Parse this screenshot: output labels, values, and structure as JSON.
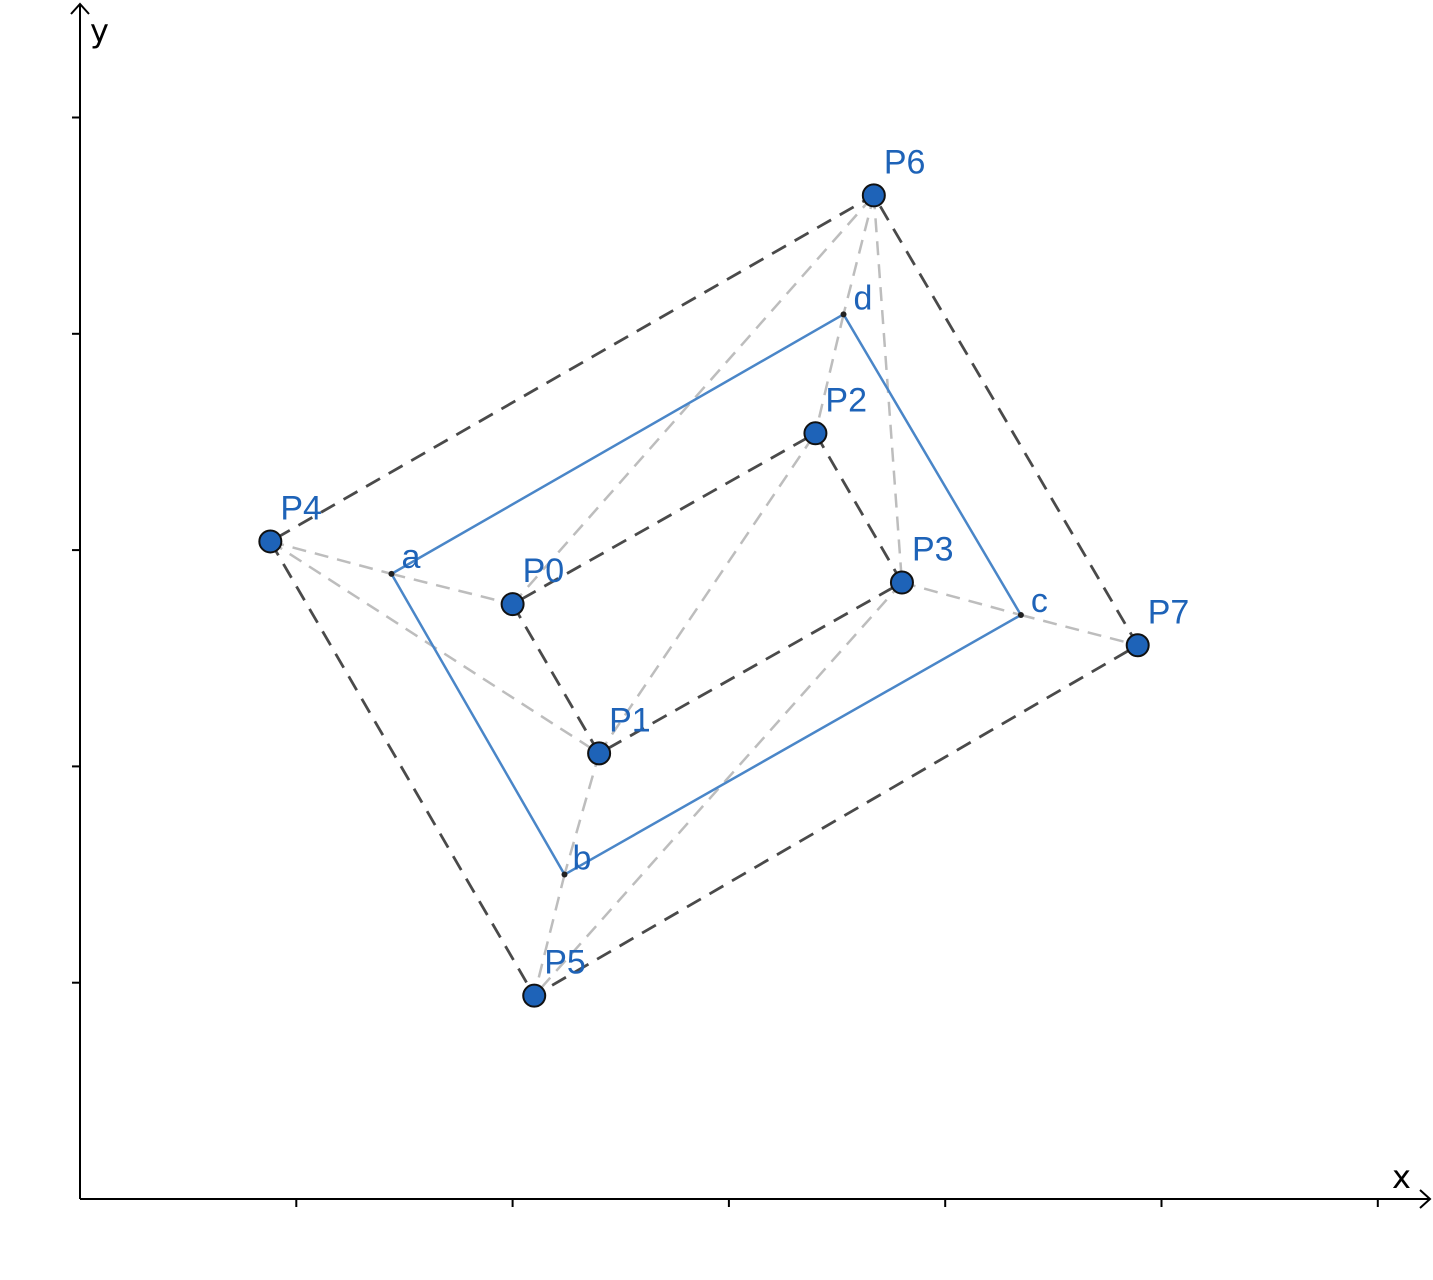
{
  "axes": {
    "x_label": "x",
    "y_label": "y"
  },
  "points": [
    {
      "name": "P0",
      "x": 2.0,
      "y": 2.75
    },
    {
      "name": "P1",
      "x": 2.4,
      "y": 2.06
    },
    {
      "name": "P2",
      "x": 3.4,
      "y": 3.54
    },
    {
      "name": "P3",
      "x": 3.8,
      "y": 2.85
    },
    {
      "name": "P4",
      "x": 0.88,
      "y": 3.04
    },
    {
      "name": "P5",
      "x": 2.1,
      "y": 0.94
    },
    {
      "name": "P6",
      "x": 3.67,
      "y": 4.64
    },
    {
      "name": "P7",
      "x": 4.89,
      "y": 2.56
    }
  ],
  "constructed_points": [
    {
      "name": "a",
      "x": 1.44,
      "y": 2.89
    },
    {
      "name": "b",
      "x": 2.24,
      "y": 1.5
    },
    {
      "name": "c",
      "x": 4.35,
      "y": 2.7
    },
    {
      "name": "d",
      "x": 3.53,
      "y": 4.09
    }
  ],
  "dark_dashed_polygons": [
    [
      "P0",
      "P1",
      "P3",
      "P2"
    ],
    [
      "P4",
      "P5",
      "P7",
      "P6"
    ]
  ],
  "light_dashed_segments": [
    [
      "P4",
      "a"
    ],
    [
      "a",
      "P0"
    ],
    [
      "P4",
      "P1"
    ],
    [
      "P1",
      "P2"
    ],
    [
      "P0",
      "P6"
    ],
    [
      "P6",
      "d"
    ],
    [
      "d",
      "P2"
    ],
    [
      "P6",
      "P3"
    ],
    [
      "P3",
      "c"
    ],
    [
      "c",
      "P7"
    ],
    [
      "P3",
      "P5"
    ],
    [
      "P1",
      "b"
    ],
    [
      "b",
      "P5"
    ]
  ],
  "solid_polygon": [
    "a",
    "b",
    "c",
    "d"
  ],
  "colors": {
    "point_fill": "#1e63b8",
    "point_label": "#1e63b8",
    "solid_line": "#4a86c8",
    "dark_dash": "#4a4a4a",
    "light_dash": "#bdbdbd",
    "axis": "#000000"
  }
}
